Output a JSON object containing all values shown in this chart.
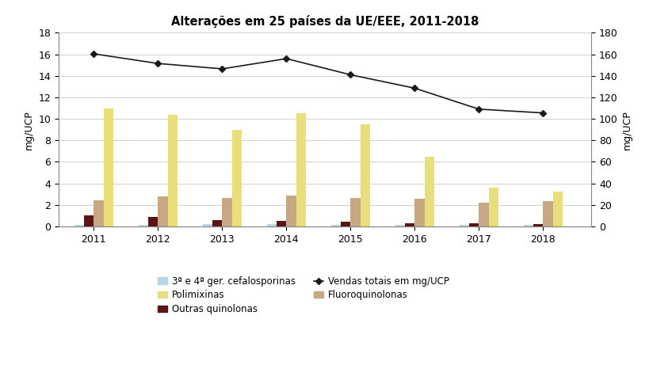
{
  "title": "Alterações em 25 países da UE/EEE, 2011-2018",
  "years": [
    2011,
    2012,
    2013,
    2014,
    2015,
    2016,
    2017,
    2018
  ],
  "cefalosporinas": [
    0.15,
    0.15,
    0.18,
    0.2,
    0.13,
    0.12,
    0.1,
    0.1
  ],
  "outras_quinolonas": [
    1.0,
    0.9,
    0.55,
    0.5,
    0.4,
    0.3,
    0.28,
    0.22
  ],
  "fluoroquinolonas": [
    2.45,
    2.75,
    2.65,
    2.85,
    2.65,
    2.6,
    2.2,
    2.35
  ],
  "polimixinas": [
    11.0,
    10.4,
    9.0,
    10.5,
    9.5,
    6.5,
    3.6,
    3.2
  ],
  "vendas_totais": [
    160.5,
    151.5,
    146.5,
    156.0,
    141.0,
    128.5,
    109.0,
    105.5
  ],
  "ylabel_left": "mg/UCP",
  "ylabel_right": "mg/UCP",
  "ylim_left": [
    0,
    18
  ],
  "ylim_right": [
    0,
    180
  ],
  "yticks_left": [
    0,
    2,
    4,
    6,
    8,
    10,
    12,
    14,
    16,
    18
  ],
  "yticks_right": [
    0,
    20,
    40,
    60,
    80,
    100,
    120,
    140,
    160,
    180
  ],
  "color_cefalosporinas": "#b8d4e8",
  "color_outras_quinolonas": "#5a1515",
  "color_fluoroquinolonas": "#c8a882",
  "color_polimixinas": "#e8de7a",
  "color_vendas": "#1a1a1a",
  "bar_width": 0.15,
  "background_color": "#ffffff",
  "grid_color": "#d0d0d0"
}
